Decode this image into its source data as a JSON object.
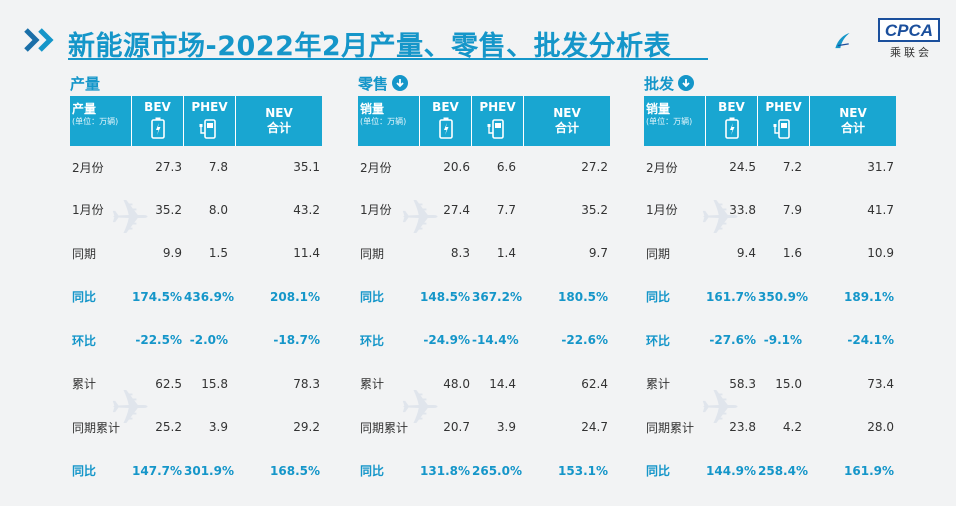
{
  "header": {
    "title": "新能源市场-2022年2月产量、零售、批发分析表",
    "logo_text": "CPCA",
    "logo_sub": "乘联会"
  },
  "colors": {
    "accent": "#1596c9",
    "header_bg": "#19a6d1",
    "logo": "#1b4f9c"
  },
  "columns": {
    "bev": "BEV",
    "phev": "PHEV",
    "nev": "NEV",
    "nev_sub": "合计",
    "unit": "(单位：万辆)"
  },
  "sections": [
    {
      "title": "产量",
      "show_arrow": false,
      "metric": "产量",
      "rows": [
        {
          "label": "2月份",
          "bev": "27.3",
          "phev": "7.8",
          "nev": "35.1",
          "hl": false
        },
        {
          "label": "1月份",
          "bev": "35.2",
          "phev": "8.0",
          "nev": "43.2",
          "hl": false
        },
        {
          "label": "同期",
          "bev": "9.9",
          "phev": "1.5",
          "nev": "11.4",
          "hl": false
        },
        {
          "label": "同比",
          "bev": "174.5%",
          "phev": "436.9%",
          "nev": "208.1%",
          "hl": true
        },
        {
          "label": "环比",
          "bev": "-22.5%",
          "phev": "-2.0%",
          "nev": "-18.7%",
          "hl": true
        },
        {
          "label": "累计",
          "bev": "62.5",
          "phev": "15.8",
          "nev": "78.3",
          "hl": false
        },
        {
          "label": "同期累计",
          "bev": "25.2",
          "phev": "3.9",
          "nev": "29.2",
          "hl": false
        },
        {
          "label": "同比",
          "bev": "147.7%",
          "phev": "301.9%",
          "nev": "168.5%",
          "hl": true
        }
      ]
    },
    {
      "title": "零售",
      "show_arrow": true,
      "metric": "销量",
      "rows": [
        {
          "label": "2月份",
          "bev": "20.6",
          "phev": "6.6",
          "nev": "27.2",
          "hl": false
        },
        {
          "label": "1月份",
          "bev": "27.4",
          "phev": "7.7",
          "nev": "35.2",
          "hl": false
        },
        {
          "label": "同期",
          "bev": "8.3",
          "phev": "1.4",
          "nev": "9.7",
          "hl": false
        },
        {
          "label": "同比",
          "bev": "148.5%",
          "phev": "367.2%",
          "nev": "180.5%",
          "hl": true
        },
        {
          "label": "环比",
          "bev": "-24.9%",
          "phev": "-14.4%",
          "nev": "-22.6%",
          "hl": true
        },
        {
          "label": "累计",
          "bev": "48.0",
          "phev": "14.4",
          "nev": "62.4",
          "hl": false
        },
        {
          "label": "同期累计",
          "bev": "20.7",
          "phev": "3.9",
          "nev": "24.7",
          "hl": false
        },
        {
          "label": "同比",
          "bev": "131.8%",
          "phev": "265.0%",
          "nev": "153.1%",
          "hl": true
        }
      ]
    },
    {
      "title": "批发",
      "show_arrow": true,
      "metric": "销量",
      "rows": [
        {
          "label": "2月份",
          "bev": "24.5",
          "phev": "7.2",
          "nev": "31.7",
          "hl": false
        },
        {
          "label": "1月份",
          "bev": "33.8",
          "phev": "7.9",
          "nev": "41.7",
          "hl": false
        },
        {
          "label": "同期",
          "bev": "9.4",
          "phev": "1.6",
          "nev": "10.9",
          "hl": false
        },
        {
          "label": "同比",
          "bev": "161.7%",
          "phev": "350.9%",
          "nev": "189.1%",
          "hl": true
        },
        {
          "label": "环比",
          "bev": "-27.6%",
          "phev": "-9.1%",
          "nev": "-24.1%",
          "hl": true
        },
        {
          "label": "累计",
          "bev": "58.3",
          "phev": "15.0",
          "nev": "73.4",
          "hl": false
        },
        {
          "label": "同期累计",
          "bev": "23.8",
          "phev": "4.2",
          "nev": "28.0",
          "hl": false
        },
        {
          "label": "同比",
          "bev": "144.9%",
          "phev": "258.4%",
          "nev": "161.9%",
          "hl": true
        }
      ]
    }
  ]
}
